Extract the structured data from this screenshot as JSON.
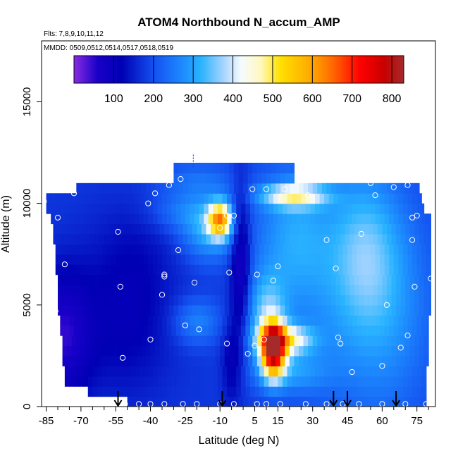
{
  "chart_data": {
    "type": "heatmap",
    "title": "ATOM4 Northbound N_accum_AMP",
    "flights_text": "Flts: 7,8,9,10,11,12",
    "mmdd_text": "MMDD: 0509,0512,0514,0517,0518,0519",
    "xlabel": "Latitude (deg N)",
    "ylabel": "Altitude (m)",
    "xlim": [
      -87,
      83
    ],
    "ylim": [
      0,
      18000
    ],
    "x_ticks": [
      -85,
      -70,
      -55,
      -40,
      -25,
      -10,
      5,
      15,
      30,
      45,
      60,
      75
    ],
    "x_minor_ticks": [
      -80,
      -75,
      -65,
      -60,
      -50,
      -45,
      -35,
      -30,
      -20,
      -15,
      -5,
      0,
      10,
      20,
      25,
      35,
      40,
      50,
      55,
      65,
      70,
      80
    ],
    "y_ticks": [
      0,
      5000,
      10000,
      15000
    ],
    "colorbar": {
      "range": [
        0,
        830
      ],
      "ticks": [
        100,
        200,
        300,
        400,
        500,
        600,
        700,
        800
      ],
      "stops": [
        {
          "v": 0,
          "color": "#8a2be2"
        },
        {
          "v": 60,
          "color": "#1800c8"
        },
        {
          "v": 120,
          "color": "#0000b4"
        },
        {
          "v": 200,
          "color": "#1450f0"
        },
        {
          "v": 280,
          "color": "#1e90ff"
        },
        {
          "v": 320,
          "color": "#2ab4ff"
        },
        {
          "v": 380,
          "color": "#aed6ff"
        },
        {
          "v": 420,
          "color": "#f5fbff"
        },
        {
          "v": 470,
          "color": "#fff8c0"
        },
        {
          "v": 520,
          "color": "#ffe000"
        },
        {
          "v": 600,
          "color": "#ffa500"
        },
        {
          "v": 650,
          "color": "#ff6a00"
        },
        {
          "v": 720,
          "color": "#ff0000"
        },
        {
          "v": 780,
          "color": "#c80000"
        },
        {
          "v": 830,
          "color": "#a52a2a"
        }
      ]
    },
    "base_value": 175,
    "features": [
      {
        "x": 13,
        "y": 2800,
        "sx": 3.5,
        "sy": 900,
        "v": 560
      },
      {
        "x": 18,
        "y": 3300,
        "sx": 8,
        "sy": 500,
        "v": 250
      },
      {
        "x": 10,
        "y": 4500,
        "sx": 6,
        "sy": 1500,
        "v": 150
      },
      {
        "x": 20,
        "y": 1700,
        "sx": 11,
        "sy": 700,
        "v": 90
      },
      {
        "x": -10,
        "y": 9200,
        "sx": 3.5,
        "sy": 600,
        "v": 360
      },
      {
        "x": -15,
        "y": 8800,
        "sx": 8,
        "sy": 1100,
        "v": 140
      },
      {
        "x": -28,
        "y": 9600,
        "sx": 9,
        "sy": 700,
        "v": 60
      },
      {
        "x": 22,
        "y": 10400,
        "sx": 10,
        "sy": 400,
        "v": 230
      },
      {
        "x": 22,
        "y": 8500,
        "sx": 12,
        "sy": 2500,
        "v": 120
      },
      {
        "x": 52,
        "y": 8000,
        "sx": 11,
        "sy": 2800,
        "v": 110
      },
      {
        "x": 60,
        "y": 4800,
        "sx": 16,
        "sy": 4000,
        "v": 110
      },
      {
        "x": -20,
        "y": 4200,
        "sx": 7,
        "sy": 800,
        "v": 90
      },
      {
        "x": -78,
        "y": 3500,
        "sx": 9,
        "sy": 2300,
        "v": -120
      },
      {
        "x": -50,
        "y": 3800,
        "sx": 14,
        "sy": 2500,
        "v": -55
      },
      {
        "x": -1,
        "y": 7200,
        "sx": 3,
        "sy": 2600,
        "v": -130
      },
      {
        "x": -5,
        "y": 2200,
        "sx": 3,
        "sy": 1500,
        "v": -70
      },
      {
        "x": -48,
        "y": 7500,
        "sx": 14,
        "sy": 2000,
        "v": -35
      },
      {
        "x": 30,
        "y": 3800,
        "sx": 14,
        "sy": 3000,
        "v": 40
      },
      {
        "x": -20,
        "y": 11200,
        "sx": 12,
        "sy": 700,
        "v": 60
      }
    ],
    "rows": [
      {
        "y0": 0,
        "y1": 500,
        "xmin": -50,
        "xmax": 79
      },
      {
        "y0": 500,
        "y1": 1000,
        "xmin": -67,
        "xmax": 79
      },
      {
        "y0": 1000,
        "y1": 1500,
        "xmin": -77,
        "xmax": 79
      },
      {
        "y0": 1500,
        "y1": 2000,
        "xmin": -77,
        "xmax": 79
      },
      {
        "y0": 2000,
        "y1": 2500,
        "xmin": -78,
        "xmax": 80
      },
      {
        "y0": 2500,
        "y1": 3000,
        "xmin": -78,
        "xmax": 80
      },
      {
        "y0": 3000,
        "y1": 3500,
        "xmin": -78,
        "xmax": 80
      },
      {
        "y0": 3500,
        "y1": 4000,
        "xmin": -79,
        "xmax": 80
      },
      {
        "y0": 4000,
        "y1": 4500,
        "xmin": -79,
        "xmax": 80
      },
      {
        "y0": 4500,
        "y1": 5000,
        "xmin": -80,
        "xmax": 81
      },
      {
        "y0": 5000,
        "y1": 5500,
        "xmin": -80,
        "xmax": 81
      },
      {
        "y0": 5500,
        "y1": 6000,
        "xmin": -80,
        "xmax": 81
      },
      {
        "y0": 6000,
        "y1": 6500,
        "xmin": -80,
        "xmax": 81
      },
      {
        "y0": 6500,
        "y1": 7000,
        "xmin": -81,
        "xmax": 81
      },
      {
        "y0": 7000,
        "y1": 7500,
        "xmin": -81,
        "xmax": 81
      },
      {
        "y0": 7500,
        "y1": 8000,
        "xmin": -81,
        "xmax": 81
      },
      {
        "y0": 8000,
        "y1": 8500,
        "xmin": -82,
        "xmax": 81
      },
      {
        "y0": 8500,
        "y1": 9000,
        "xmin": -82,
        "xmax": 81
      },
      {
        "y0": 9000,
        "y1": 9500,
        "xmin": -83,
        "xmax": 81
      },
      {
        "y0": 9500,
        "y1": 10000,
        "xmin": -85,
        "xmax": 78
      },
      {
        "y0": 10000,
        "y1": 10500,
        "xmin": -85,
        "xmax": 77
      },
      {
        "y0": 10500,
        "y1": 11000,
        "xmin": -72,
        "xmax": 76
      },
      {
        "y0": 11000,
        "y1": 11500,
        "xmin": -30,
        "xmax": 22
      },
      {
        "y0": 11500,
        "y1": 12000,
        "xmin": -30,
        "xmax": 22
      }
    ],
    "sample_points": [
      [
        -86,
        10100
      ],
      [
        -73,
        10500
      ],
      [
        -80,
        9300
      ],
      [
        -77,
        7000
      ],
      [
        -81,
        4700
      ],
      [
        -80,
        2800
      ],
      [
        -81,
        1300
      ],
      [
        -54,
        8600
      ],
      [
        -53,
        5900
      ],
      [
        -52,
        2400
      ],
      [
        -41,
        10000
      ],
      [
        -38,
        10500
      ],
      [
        -35,
        5500
      ],
      [
        -34,
        6500
      ],
      [
        -40,
        3300
      ],
      [
        -28,
        7700
      ],
      [
        -27,
        11200
      ],
      [
        -25,
        4000
      ],
      [
        -21,
        6100
      ],
      [
        -19,
        3800
      ],
      [
        -32,
        10900
      ],
      [
        -7,
        9400
      ],
      [
        -4,
        9400
      ],
      [
        -6,
        6600
      ],
      [
        -7,
        3100
      ],
      [
        4,
        10700
      ],
      [
        6,
        6500
      ],
      [
        13,
        6200
      ],
      [
        15,
        6900
      ],
      [
        5,
        3000
      ],
      [
        2,
        2600
      ],
      [
        9,
        3300
      ],
      [
        10,
        10700
      ],
      [
        18,
        10700
      ],
      [
        28,
        10400
      ],
      [
        36,
        8200
      ],
      [
        40,
        6800
      ],
      [
        41,
        3400
      ],
      [
        42,
        3100
      ],
      [
        47,
        1700
      ],
      [
        51,
        8500
      ],
      [
        55,
        11000
      ],
      [
        60,
        2000
      ],
      [
        57,
        10400
      ],
      [
        62,
        5000
      ],
      [
        65,
        10800
      ],
      [
        71,
        10900
      ],
      [
        73,
        9300
      ],
      [
        75,
        9400
      ],
      [
        73,
        8200
      ],
      [
        74,
        5900
      ],
      [
        71,
        3500
      ],
      [
        68,
        2900
      ],
      [
        81,
        6300
      ],
      [
        -51,
        130
      ],
      [
        -45,
        130
      ],
      [
        -40,
        130
      ],
      [
        -34,
        130
      ],
      [
        -26,
        130
      ],
      [
        -20,
        130
      ],
      [
        -10,
        130
      ],
      [
        -4,
        130
      ],
      [
        6,
        130
      ],
      [
        10,
        130
      ],
      [
        16,
        130
      ],
      [
        27,
        130
      ],
      [
        36,
        130
      ],
      [
        43,
        130
      ],
      [
        50,
        130
      ],
      [
        60,
        130
      ],
      [
        70,
        130
      ],
      [
        79,
        130
      ],
      [
        -34,
        6400
      ],
      [
        -10,
        8800
      ]
    ],
    "arrows": [
      -54,
      -9,
      39,
      45,
      66
    ],
    "marker_tick": {
      "x": -21.5,
      "y0": 11700,
      "y1": 12400
    }
  }
}
